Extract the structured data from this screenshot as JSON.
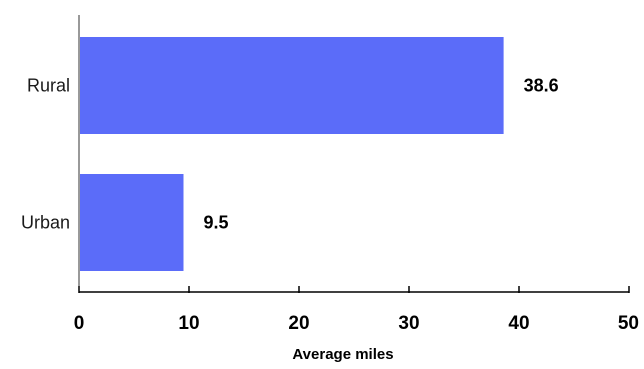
{
  "chart_data": {
    "type": "bar",
    "orientation": "horizontal",
    "categories": [
      "Rural",
      "Urban"
    ],
    "values": [
      38.6,
      9.5
    ],
    "value_labels": [
      "38.6",
      "9.5"
    ],
    "title": "",
    "xlabel": "Average miles",
    "ylabel": "",
    "xlim": [
      0,
      50
    ],
    "x_ticks": [
      0,
      10,
      20,
      30,
      40,
      50
    ],
    "x_tick_labels": [
      "0",
      "10",
      "20",
      "30",
      "40",
      "50"
    ],
    "grid": false,
    "legend": "none",
    "bar_color": "#5b6cf9"
  }
}
